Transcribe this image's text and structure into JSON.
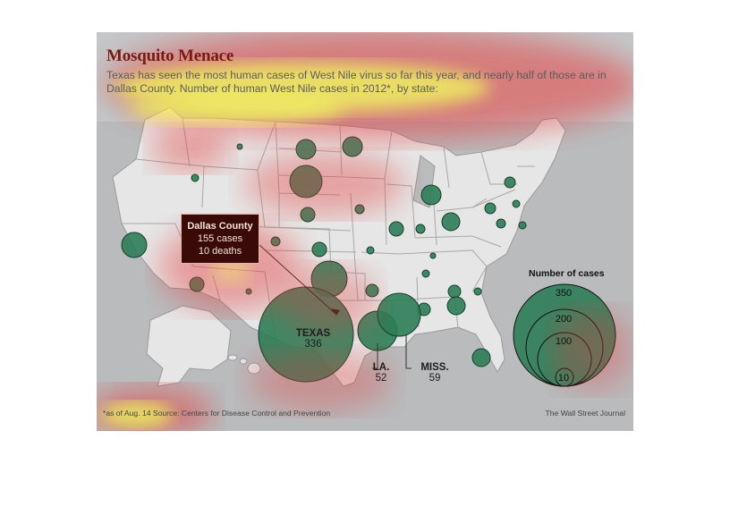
{
  "title": "Mosquito Menace",
  "subtitle": "Texas has seen the most human cases of West Nile virus so far this year, and nearly half of those are in Dallas County. Number of human West Nile cases in 2012*, by state:",
  "callout": {
    "name": "Dallas County",
    "cases": "155 cases",
    "deaths": "10 deaths"
  },
  "labels": {
    "texas": {
      "name": "TEXAS",
      "value": "336"
    },
    "la": {
      "name": "LA.",
      "value": "52"
    },
    "miss": {
      "name": "MISS.",
      "value": "59"
    }
  },
  "legend": {
    "title": "Number of cases",
    "values": [
      "350",
      "200",
      "100",
      "10"
    ]
  },
  "footnote": "*as of Aug. 14     Source: Centers for Disease Control and Prevention",
  "credit": "The Wall Street Journal",
  "colors": {
    "bubble": "#2e7d57",
    "bubble_stroke": "#163d2b",
    "land": "#e6e6e6",
    "heat_red": "#e53c3c",
    "heat_yellow": "#ffff3a"
  }
}
